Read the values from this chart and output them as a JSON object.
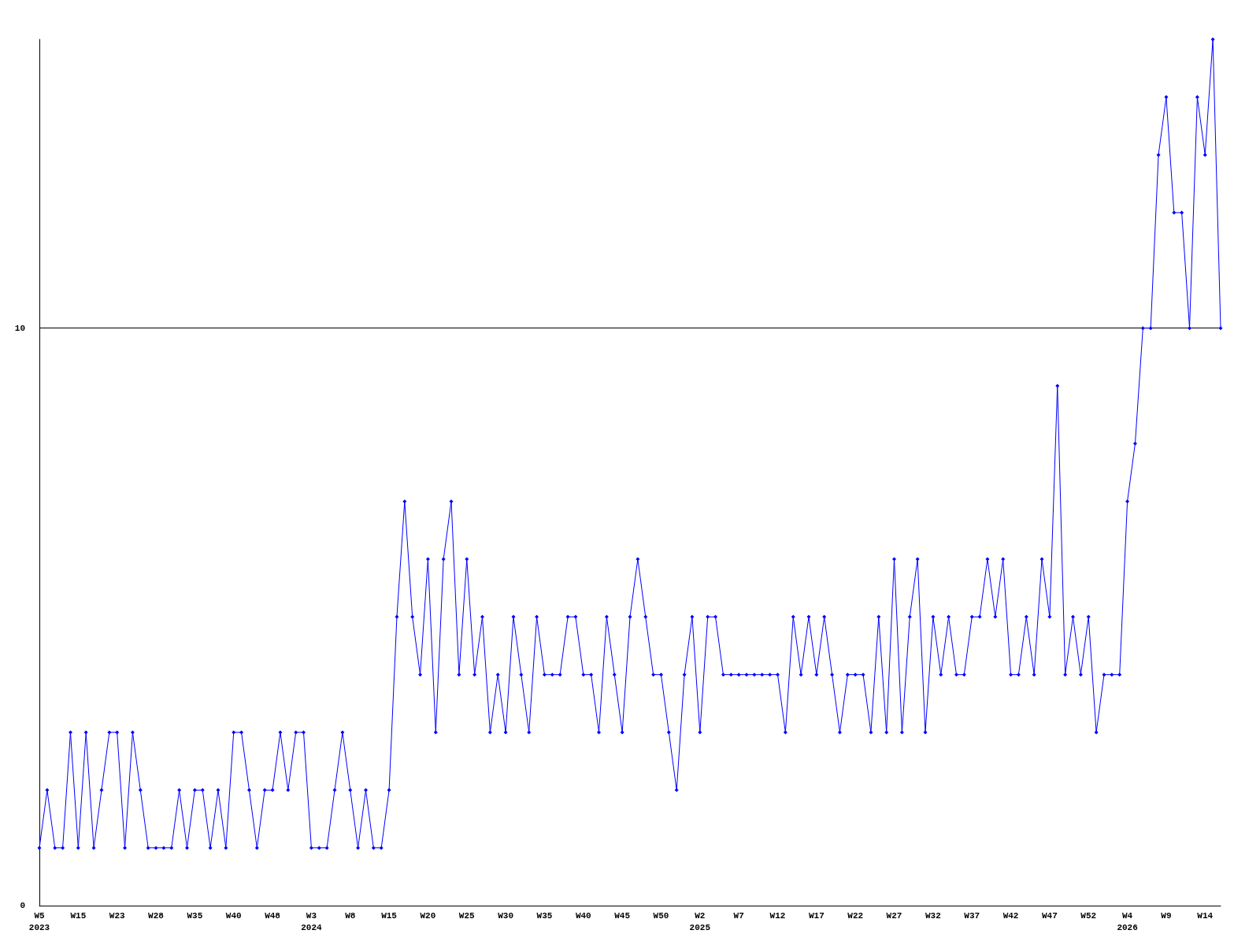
{
  "chart_data": {
    "type": "line",
    "categories": [
      "W5\n2023",
      null,
      null,
      null,
      null,
      "W15",
      null,
      null,
      null,
      null,
      "W23",
      null,
      null,
      null,
      null,
      "W28",
      null,
      null,
      null,
      null,
      "W35",
      null,
      null,
      null,
      null,
      "W40",
      null,
      null,
      null,
      null,
      "W48",
      null,
      null,
      null,
      null,
      "W3\n2024",
      null,
      null,
      null,
      null,
      "W8",
      null,
      null,
      null,
      null,
      "W15",
      null,
      null,
      null,
      null,
      "W20",
      null,
      null,
      null,
      null,
      "W25",
      null,
      null,
      null,
      null,
      "W30",
      null,
      null,
      null,
      null,
      "W35",
      null,
      null,
      null,
      null,
      "W40",
      null,
      null,
      null,
      null,
      "W45",
      null,
      null,
      null,
      null,
      "W50",
      null,
      null,
      null,
      null,
      "W2\n2025",
      null,
      null,
      null,
      null,
      "W7",
      null,
      null,
      null,
      null,
      "W12",
      null,
      null,
      null,
      null,
      "W17",
      null,
      null,
      null,
      null,
      "W22",
      null,
      null,
      null,
      null,
      "W27",
      null,
      null,
      null,
      null,
      "W32",
      null,
      null,
      null,
      null,
      "W37",
      null,
      null,
      null,
      null,
      "W42",
      null,
      null,
      null,
      null,
      "W47",
      null,
      null,
      null,
      null,
      "W52",
      null,
      null,
      null,
      null,
      "W4\n2026",
      null,
      null,
      null,
      null,
      "W9",
      null,
      null,
      null,
      null,
      "W14",
      null,
      null
    ],
    "series": [
      {
        "color": "#0000ff",
        "values": [
          1,
          2,
          1,
          1,
          3,
          1,
          3,
          1,
          2,
          3,
          3,
          1,
          3,
          2,
          1,
          1,
          1,
          1,
          2,
          1,
          2,
          2,
          1,
          2,
          1,
          3,
          3,
          2,
          1,
          2,
          2,
          3,
          2,
          3,
          3,
          1,
          1,
          1,
          2,
          3,
          2,
          1,
          2,
          1,
          1,
          2,
          5,
          7,
          5,
          4,
          6,
          3,
          6,
          7,
          4,
          6,
          4,
          5,
          3,
          4,
          3,
          5,
          4,
          3,
          5,
          4,
          4,
          4,
          5,
          5,
          4,
          4,
          3,
          5,
          4,
          3,
          5,
          6,
          5,
          4,
          4,
          3,
          2,
          4,
          5,
          3,
          5,
          5,
          4,
          4,
          4,
          4,
          4,
          4,
          4,
          4,
          3,
          5,
          4,
          5,
          4,
          5,
          4,
          3,
          4,
          4,
          4,
          3,
          5,
          3,
          6,
          3,
          5,
          6,
          3,
          5,
          4,
          5,
          4,
          4,
          5,
          5,
          6,
          5,
          6,
          4,
          4,
          5,
          4,
          6,
          5,
          9,
          4,
          5,
          4,
          5,
          3,
          4,
          4,
          4,
          7,
          8,
          10,
          10,
          13,
          14,
          12,
          12,
          10,
          14,
          13,
          15,
          10
        ]
      }
    ],
    "ylim": [
      0,
      15
    ],
    "yticks": [
      0,
      10
    ],
    "grid": "y",
    "marker": "diamond",
    "line_style": "solid"
  }
}
